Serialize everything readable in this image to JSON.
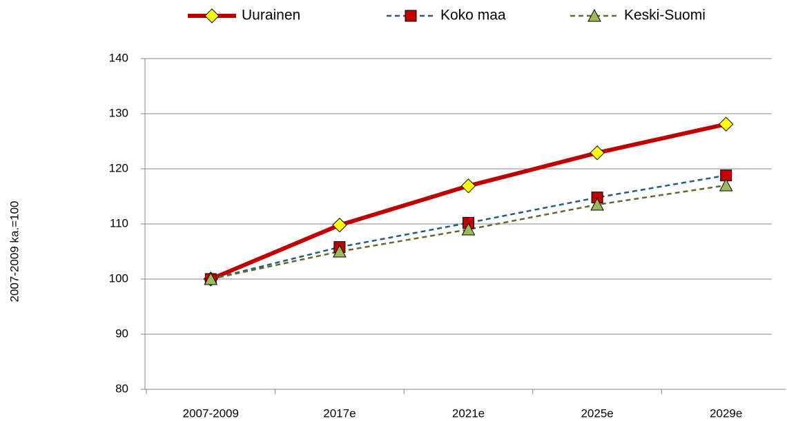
{
  "chart_data": {
    "type": "line",
    "y_label": "2007-2009 ka.=100",
    "categories": [
      "2007-2009",
      "2017e",
      "2021e",
      "2025e",
      "2029e"
    ],
    "series": [
      {
        "name": "Uurainen",
        "color": "#c00000",
        "marker": "diamond",
        "marker_color": "#ffff00",
        "dashed": false,
        "values": [
          100,
          109.8,
          116.9,
          122.9,
          128.1
        ]
      },
      {
        "name": "Koko maa",
        "color": "#215f78",
        "marker": "square",
        "marker_color": "#c00000",
        "dashed": true,
        "values": [
          100,
          105.8,
          110.2,
          114.8,
          118.8
        ]
      },
      {
        "name": "Keski-Suomi",
        "color": "#5f6b2a",
        "marker": "triangle",
        "marker_color": "#9bbb59",
        "dashed": true,
        "values": [
          100,
          105,
          109,
          113.5,
          117
        ]
      }
    ],
    "ylim": [
      80,
      140
    ],
    "yticks": [
      80,
      90,
      100,
      110,
      120,
      130,
      140
    ],
    "grid": true,
    "legend": "top"
  }
}
